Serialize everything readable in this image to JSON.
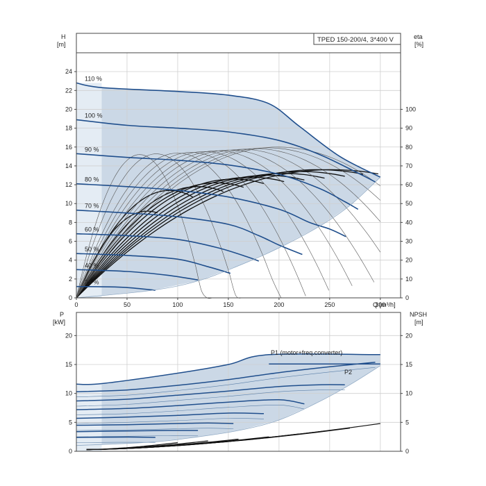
{
  "title_box": "TPED 150-200/4, 3*400 V",
  "chart_data": [
    {
      "type": "line",
      "name_id": "head",
      "left_axis": {
        "label": "H",
        "unit": "[m]",
        "ylim": [
          0,
          26
        ],
        "ticks": [
          0,
          2,
          4,
          6,
          8,
          10,
          12,
          14,
          16,
          18,
          20,
          22,
          24
        ]
      },
      "right_axis": {
        "label": "eta",
        "unit": "[%]",
        "ylim": [
          0,
          130
        ],
        "ticks": [
          0,
          10,
          20,
          30,
          40,
          50,
          60,
          70,
          80,
          90,
          100
        ]
      },
      "x_axis": {
        "unit": "Q [m³/h]",
        "xlim": [
          0,
          320
        ],
        "ticks": [
          0,
          50,
          100,
          150,
          200,
          250,
          300
        ]
      },
      "grid": true,
      "envelope": {
        "upper": [
          [
            0,
            22.8
          ],
          [
            25,
            22.3
          ],
          [
            100,
            21.9
          ],
          [
            150,
            21.5
          ],
          [
            190,
            20.6
          ],
          [
            220,
            18.2
          ],
          [
            260,
            15.0
          ],
          [
            300,
            12.8
          ]
        ],
        "lower": [
          [
            0,
            0
          ],
          [
            75,
            0.8
          ],
          [
            120,
            1.8
          ],
          [
            160,
            3.4
          ],
          [
            200,
            5.3
          ],
          [
            240,
            7.6
          ],
          [
            270,
            9.8
          ],
          [
            300,
            12.8
          ]
        ]
      },
      "series": [
        {
          "label": "110 %",
          "points": [
            [
              0,
              22.8
            ],
            [
              25,
              22.3
            ],
            [
              100,
              21.9
            ],
            [
              150,
              21.5
            ],
            [
              190,
              20.6
            ],
            [
              220,
              18.2
            ],
            [
              260,
              15.0
            ],
            [
              300,
              12.8
            ]
          ]
        },
        {
          "label": "100 %",
          "points": [
            [
              0,
              18.9
            ],
            [
              50,
              18.3
            ],
            [
              100,
              18.0
            ],
            [
              150,
              17.6
            ],
            [
              200,
              16.7
            ],
            [
              240,
              15.2
            ],
            [
              275,
              13.4
            ],
            [
              295,
              12.3
            ]
          ]
        },
        {
          "label": "90 %",
          "points": [
            [
              0,
              15.3
            ],
            [
              50,
              14.9
            ],
            [
              100,
              14.6
            ],
            [
              150,
              14.1
            ],
            [
              200,
              13.1
            ],
            [
              240,
              11.6
            ],
            [
              265,
              10.2
            ],
            [
              278,
              9.4
            ]
          ]
        },
        {
          "label": "80 %",
          "points": [
            [
              0,
              12.1
            ],
            [
              50,
              11.8
            ],
            [
              100,
              11.4
            ],
            [
              150,
              10.7
            ],
            [
              200,
              9.4
            ],
            [
              230,
              8.0
            ],
            [
              250,
              7.3
            ],
            [
              266,
              6.5
            ]
          ]
        },
        {
          "label": "70 %",
          "points": [
            [
              0,
              9.3
            ],
            [
              50,
              9.0
            ],
            [
              100,
              8.6
            ],
            [
              150,
              7.8
            ],
            [
              180,
              6.6
            ],
            [
              200,
              5.6
            ],
            [
              223,
              4.6
            ]
          ]
        },
        {
          "label": "60 %",
          "points": [
            [
              0,
              6.8
            ],
            [
              50,
              6.6
            ],
            [
              100,
              6.2
            ],
            [
              140,
              5.3
            ],
            [
              170,
              4.3
            ],
            [
              180,
              3.9
            ]
          ]
        },
        {
          "label": "50 %",
          "points": [
            [
              0,
              4.7
            ],
            [
              50,
              4.5
            ],
            [
              100,
              4.1
            ],
            [
              130,
              3.3
            ],
            [
              152,
              2.6
            ]
          ]
        },
        {
          "label": "40 %",
          "points": [
            [
              0,
              3.0
            ],
            [
              50,
              2.8
            ],
            [
              90,
              2.4
            ],
            [
              120,
              1.9
            ]
          ]
        },
        {
          "label": "25 %",
          "points": [
            [
              0,
              1.2
            ],
            [
              40,
              1.15
            ],
            [
              60,
              1.0
            ],
            [
              78,
              0.8
            ]
          ]
        }
      ],
      "efficiency_curves_pct": [
        {
          "peak_q": 70,
          "peak_eta": 46,
          "end_q": 80
        },
        {
          "peak_q": 92,
          "peak_eta": 57,
          "end_q": 115
        },
        {
          "peak_q": 120,
          "peak_eta": 59,
          "end_q": 145
        },
        {
          "peak_q": 138,
          "peak_eta": 61,
          "end_q": 165
        },
        {
          "peak_q": 155,
          "peak_eta": 63,
          "end_q": 185
        },
        {
          "peak_q": 172,
          "peak_eta": 64,
          "end_q": 205
        },
        {
          "peak_q": 188,
          "peak_eta": 65,
          "end_q": 225
        },
        {
          "peak_q": 205,
          "peak_eta": 66,
          "end_q": 245
        },
        {
          "peak_q": 222,
          "peak_eta": 67,
          "end_q": 265
        },
        {
          "peak_q": 238,
          "peak_eta": 68,
          "end_q": 283
        },
        {
          "peak_q": 252,
          "peak_eta": 68,
          "end_q": 298
        }
      ]
    },
    {
      "type": "line",
      "name_id": "power",
      "left_axis": {
        "label": "P",
        "unit": "[kW]",
        "ylim": [
          0,
          24
        ],
        "ticks": [
          0,
          5,
          10,
          15,
          20
        ]
      },
      "right_axis": {
        "label": "NPSH",
        "unit": "[m]",
        "ylim": [
          0,
          24
        ],
        "ticks": [
          0,
          5,
          10,
          15,
          20
        ]
      },
      "x_axis": {
        "xlim": [
          0,
          320
        ]
      },
      "grid": true,
      "envelope": {
        "upper": [
          [
            0,
            11.6
          ],
          [
            25,
            11.7
          ],
          [
            100,
            13.5
          ],
          [
            150,
            15.0
          ],
          [
            190,
            16.7
          ],
          [
            300,
            16.7
          ]
        ],
        "lower": [
          [
            0,
            1.0
          ],
          [
            75,
            1.6
          ],
          [
            120,
            2.5
          ],
          [
            160,
            3.6
          ],
          [
            200,
            5.4
          ],
          [
            240,
            8.6
          ],
          [
            270,
            11.5
          ],
          [
            300,
            14.8
          ]
        ]
      },
      "series": [
        {
          "label": "P1 (motor+freq.converter)",
          "points": [
            [
              0,
              11.6
            ],
            [
              25,
              11.7
            ],
            [
              100,
              13.5
            ],
            [
              150,
              15.0
            ],
            [
              190,
              16.7
            ],
            [
              300,
              16.7
            ]
          ]
        },
        {
          "label": "P2",
          "points": [
            [
              190,
              15.1
            ],
            [
              300,
              15.1
            ]
          ]
        },
        {
          "label": "",
          "points": [
            [
              0,
              10.3
            ],
            [
              50,
              10.6
            ],
            [
              100,
              11.4
            ],
            [
              150,
              12.4
            ],
            [
              200,
              13.6
            ],
            [
              250,
              14.6
            ],
            [
              295,
              15.4
            ]
          ]
        },
        {
          "label": "",
          "points": [
            [
              0,
              8.7
            ],
            [
              50,
              9.0
            ],
            [
              100,
              9.7
            ],
            [
              150,
              10.4
            ],
            [
              200,
              11.2
            ],
            [
              240,
              11.5
            ],
            [
              265,
              11.5
            ]
          ]
        },
        {
          "label": "",
          "points": [
            [
              0,
              7.2
            ],
            [
              50,
              7.4
            ],
            [
              100,
              7.9
            ],
            [
              150,
              8.5
            ],
            [
              200,
              8.9
            ],
            [
              225,
              8.2
            ]
          ]
        },
        {
          "label": "",
          "points": [
            [
              0,
              5.7
            ],
            [
              50,
              5.9
            ],
            [
              100,
              6.2
            ],
            [
              150,
              6.6
            ],
            [
              185,
              6.5
            ]
          ]
        },
        {
          "label": "",
          "points": [
            [
              0,
              4.5
            ],
            [
              50,
              4.6
            ],
            [
              100,
              4.8
            ],
            [
              130,
              4.9
            ],
            [
              155,
              4.8
            ]
          ]
        },
        {
          "label": "",
          "points": [
            [
              0,
              3.4
            ],
            [
              50,
              3.5
            ],
            [
              90,
              3.6
            ],
            [
              120,
              3.6
            ]
          ]
        },
        {
          "label": "",
          "points": [
            [
              0,
              2.4
            ],
            [
              40,
              2.45
            ],
            [
              60,
              2.45
            ],
            [
              78,
              2.4
            ]
          ]
        }
      ],
      "npsh_curves_m": [
        {
          "start_q": 10,
          "start": 0.3,
          "end_q": 300,
          "end": 4.8
        },
        {
          "start_q": 10,
          "start": 0.3,
          "end_q": 270,
          "end": 4.0
        },
        {
          "start_q": 10,
          "start": 0.3,
          "end_q": 245,
          "end": 3.5
        },
        {
          "start_q": 10,
          "start": 0.3,
          "end_q": 220,
          "end": 3.0
        },
        {
          "start_q": 10,
          "start": 0.3,
          "end_q": 190,
          "end": 2.5
        },
        {
          "start_q": 10,
          "start": 0.3,
          "end_q": 160,
          "end": 2.1
        },
        {
          "start_q": 10,
          "start": 0.3,
          "end_q": 130,
          "end": 1.8
        },
        {
          "start_q": 10,
          "start": 0.3,
          "end_q": 100,
          "end": 1.5
        }
      ]
    }
  ]
}
